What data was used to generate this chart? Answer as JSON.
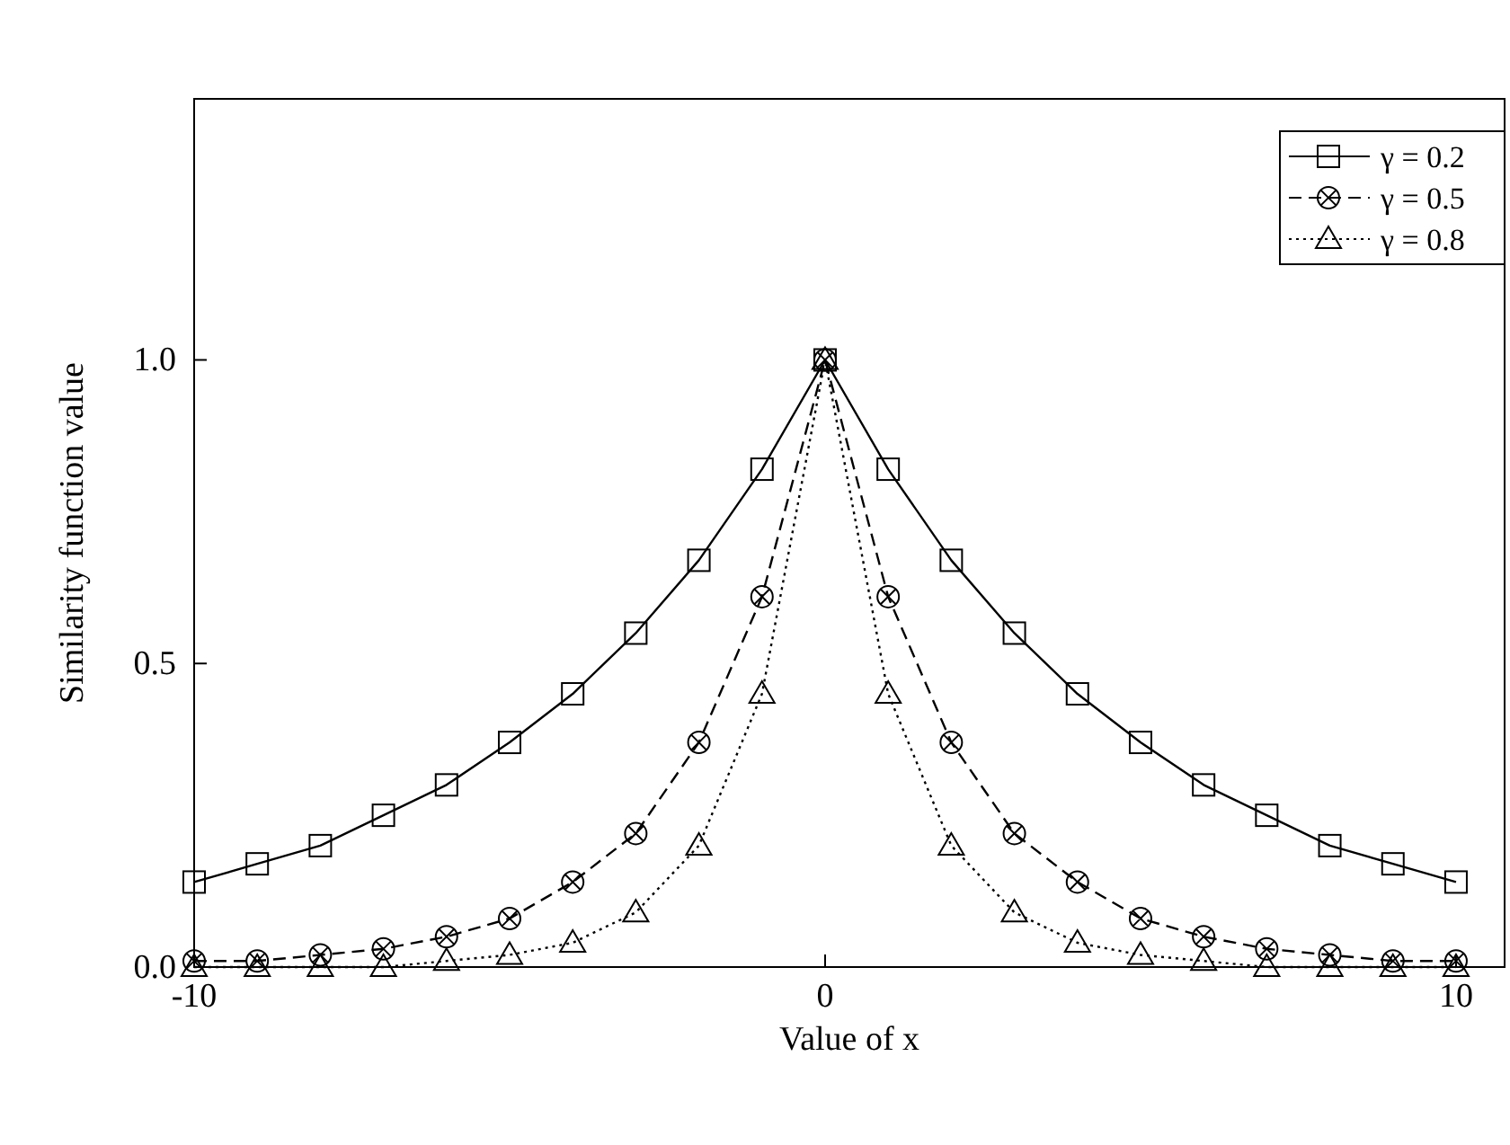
{
  "chart_data": {
    "type": "line",
    "xlabel": "Value of x",
    "ylabel": "Similarity function value",
    "x": [
      -10,
      -9,
      -8,
      -7,
      -6,
      -5,
      -4,
      -3,
      -2,
      -1,
      0,
      1,
      2,
      3,
      4,
      5,
      6,
      7,
      8,
      9,
      10
    ],
    "series": [
      {
        "name": "γ = 0.2",
        "color": "#000000",
        "marker": "square",
        "line_style": "solid",
        "values": [
          0.14,
          0.17,
          0.2,
          0.25,
          0.3,
          0.37,
          0.45,
          0.55,
          0.67,
          0.82,
          1,
          0.82,
          0.67,
          0.55,
          0.45,
          0.37,
          0.3,
          0.25,
          0.2,
          0.17,
          0.14
        ]
      },
      {
        "name": "γ = 0.5",
        "color": "#000000",
        "marker": "cross",
        "line_style": "dashed",
        "values": [
          0.01,
          0.01,
          0.02,
          0.03,
          0.05,
          0.08,
          0.14,
          0.22,
          0.37,
          0.61,
          1,
          0.61,
          0.37,
          0.22,
          0.14,
          0.08,
          0.05,
          0.03,
          0.02,
          0.01,
          0.01
        ]
      },
      {
        "name": "γ = 0.8",
        "color": "#000000",
        "marker": "triangle",
        "line_style": "dotted",
        "values": [
          0,
          0,
          0,
          0,
          0.01,
          0.02,
          0.04,
          0.09,
          0.2,
          0.45,
          1,
          0.45,
          0.2,
          0.09,
          0.04,
          0.02,
          0.01,
          0,
          0,
          0,
          0
        ]
      }
    ],
    "xlim": [
      -10,
      10.77
    ],
    "xticks": [
      -10,
      0,
      10
    ],
    "ylim": [
      0,
      1.43
    ],
    "yticks": [
      {
        "value": 0,
        "label": "0.0"
      },
      {
        "value": 0.5,
        "label": "0.5"
      },
      {
        "value": 1,
        "label": "1.0"
      }
    ],
    "grid": false,
    "legend": "top right"
  }
}
